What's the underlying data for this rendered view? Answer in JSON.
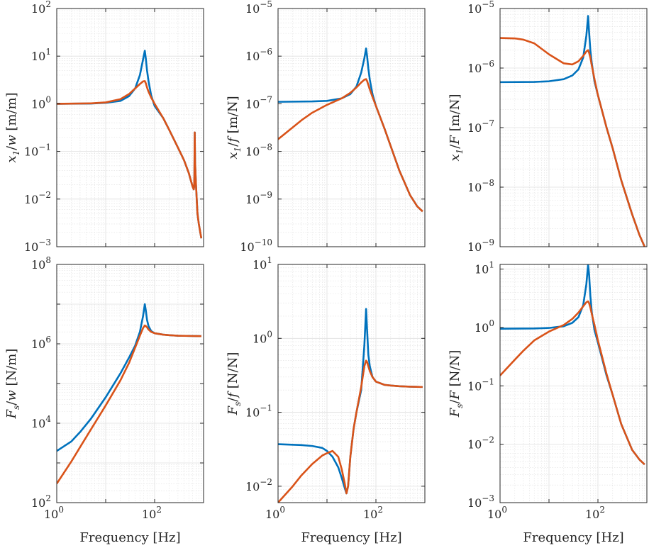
{
  "colors": {
    "series_1": "#0072BD",
    "series_2": "#D95319",
    "grid": "#dfdfdf",
    "axis": "#262626"
  },
  "chart_data": [
    {
      "type": "line",
      "title": "",
      "xscale": "log",
      "yscale": "log",
      "xlim": [
        1,
        1000
      ],
      "ylim": [
        0.001,
        100
      ],
      "xlabel": "",
      "ylabel_html": "x<tspan class=\"sub\">1</tspan>/w [m/m]",
      "ylabel": "x1/w [m/m]",
      "xticks": [],
      "yticks": [
        {
          "v": 0.001,
          "b": "10",
          "e": "−3"
        },
        {
          "v": 0.01,
          "b": "10",
          "e": "−2"
        },
        {
          "v": 0.1,
          "b": "10",
          "e": "−1"
        },
        {
          "v": 1,
          "b": "10",
          "e": "0"
        },
        {
          "v": 10,
          "b": "10",
          "e": "1"
        },
        {
          "v": 100,
          "b": "10",
          "e": "2"
        }
      ],
      "grid": true,
      "series": [
        {
          "x": [
            1,
            5,
            10,
            20,
            30,
            40,
            50,
            58,
            63,
            66,
            70,
            75,
            85,
            100,
            150,
            200,
            300,
            400,
            500,
            560,
            600,
            630,
            640,
            650,
            655,
            660,
            670,
            700,
            750,
            800,
            900
          ],
          "y": [
            1,
            1.01,
            1.05,
            1.15,
            1.45,
            2.1,
            4,
            8.5,
            13,
            9,
            5,
            3,
            1.5,
            0.9,
            0.5,
            0.28,
            0.12,
            0.065,
            0.035,
            0.023,
            0.018,
            0.016,
            0.018,
            0.03,
            0.1,
            0.25,
            0.06,
            0.02,
            0.005,
            0.003,
            0.0015
          ]
        },
        {
          "x": [
            1,
            5,
            10,
            20,
            30,
            40,
            50,
            58,
            63,
            66,
            70,
            75,
            85,
            100,
            150,
            200,
            300,
            400,
            500,
            560,
            600,
            630,
            640,
            650,
            655,
            660,
            670,
            700,
            750,
            800,
            900
          ],
          "y": [
            1,
            1.02,
            1.07,
            1.25,
            1.6,
            2.1,
            2.6,
            2.95,
            3,
            2.7,
            2.2,
            1.8,
            1.35,
            1,
            0.5,
            0.28,
            0.12,
            0.065,
            0.035,
            0.023,
            0.018,
            0.016,
            0.018,
            0.03,
            0.1,
            0.25,
            0.06,
            0.02,
            0.005,
            0.003,
            0.0015
          ]
        }
      ]
    },
    {
      "type": "line",
      "title": "",
      "xscale": "log",
      "yscale": "log",
      "xlim": [
        1,
        1000
      ],
      "ylim": [
        1e-10,
        1e-05
      ],
      "xlabel": "",
      "ylabel": "x1/f [m/N]",
      "xticks": [],
      "yticks": [
        {
          "v": 1e-10,
          "b": "10",
          "e": "−10"
        },
        {
          "v": 1e-09,
          "b": "10",
          "e": "−9"
        },
        {
          "v": 1e-08,
          "b": "10",
          "e": "−8"
        },
        {
          "v": 1e-07,
          "b": "10",
          "e": "−7"
        },
        {
          "v": 1e-06,
          "b": "10",
          "e": "−6"
        },
        {
          "v": 1e-05,
          "b": "10",
          "e": "−5"
        }
      ],
      "grid": true,
      "series": [
        {
          "x": [
            1,
            5,
            10,
            20,
            30,
            40,
            50,
            58,
            63,
            66,
            70,
            75,
            85,
            100,
            150,
            200,
            300,
            500,
            700,
            900
          ],
          "y": [
            1.1e-07,
            1.12e-07,
            1.15e-07,
            1.3e-07,
            1.6e-07,
            2.3e-07,
            4.5e-07,
            9e-07,
            1.45e-06,
            1e-06,
            5.5e-07,
            3.2e-07,
            1.6e-07,
            9e-08,
            3e-08,
            1.3e-08,
            4e-09,
            1.2e-09,
            7e-10,
            5.5e-10
          ]
        },
        {
          "x": [
            1,
            2,
            3,
            5,
            10,
            20,
            30,
            40,
            50,
            58,
            63,
            66,
            70,
            75,
            85,
            100,
            150,
            200,
            300,
            500,
            700,
            900
          ],
          "y": [
            1.8e-08,
            3.2e-08,
            4.5e-08,
            6.5e-08,
            9.5e-08,
            1.3e-07,
            1.7e-07,
            2.2e-07,
            2.8e-07,
            3.2e-07,
            3.3e-07,
            3e-07,
            2.5e-07,
            2e-07,
            1.4e-07,
            9e-08,
            3e-08,
            1.3e-08,
            4e-09,
            1.2e-09,
            7e-10,
            5.5e-10
          ]
        }
      ]
    },
    {
      "type": "line",
      "title": "",
      "xscale": "log",
      "yscale": "log",
      "xlim": [
        1,
        1000
      ],
      "ylim": [
        1e-09,
        1e-05
      ],
      "xlabel": "",
      "ylabel": "x1/F [m/N]",
      "xticks": [],
      "yticks": [
        {
          "v": 1e-09,
          "b": "10",
          "e": "−9"
        },
        {
          "v": 1e-08,
          "b": "10",
          "e": "−8"
        },
        {
          "v": 1e-07,
          "b": "10",
          "e": "−7"
        },
        {
          "v": 1e-06,
          "b": "10",
          "e": "−6"
        },
        {
          "v": 1e-05,
          "b": "10",
          "e": "−5"
        }
      ],
      "grid": true,
      "series": [
        {
          "x": [
            1,
            5,
            10,
            20,
            30,
            40,
            50,
            58,
            63,
            66,
            70,
            75,
            85,
            100,
            150,
            200,
            300,
            500,
            700,
            900
          ],
          "y": [
            5.8e-07,
            5.85e-07,
            6e-07,
            6.5e-07,
            7.5e-07,
            9.5e-07,
            1.5e-06,
            3.5e-06,
            7.5e-06,
            4e-06,
            2e-06,
            1.2e-06,
            6e-07,
            3.5e-07,
            1e-07,
            4.5e-08,
            1.3e-08,
            3.5e-09,
            1.6e-09,
            1e-09
          ]
        },
        {
          "x": [
            1,
            2,
            3,
            5,
            10,
            20,
            30,
            40,
            50,
            58,
            63,
            66,
            70,
            75,
            85,
            100,
            150,
            200,
            300,
            500,
            700,
            900
          ],
          "y": [
            3.2e-06,
            3.15e-06,
            3e-06,
            2.6e-06,
            1.7e-06,
            1.2e-06,
            1.15e-06,
            1.3e-06,
            1.6e-06,
            1.9e-06,
            2e-06,
            1.8e-06,
            1.5e-06,
            1.1e-06,
            6.5e-07,
            3.5e-07,
            1e-07,
            4.5e-08,
            1.3e-08,
            3.5e-09,
            1.6e-09,
            1e-09
          ]
        }
      ]
    },
    {
      "type": "line",
      "title": "",
      "xscale": "log",
      "yscale": "log",
      "xlim": [
        1,
        1000
      ],
      "ylim": [
        100,
        100000000.0
      ],
      "xlabel": "Frequency [Hz]",
      "ylabel": "Fs/w [N/m]",
      "xticks": [
        {
          "v": 1,
          "b": "10",
          "e": "0"
        },
        {
          "v": 100,
          "b": "10",
          "e": "2"
        }
      ],
      "yticks": [
        {
          "v": 100,
          "b": "10",
          "e": "2"
        },
        {
          "v": 10000.0,
          "b": "10",
          "e": "4"
        },
        {
          "v": 1000000.0,
          "b": "10",
          "e": "6"
        },
        {
          "v": 100000000.0,
          "b": "10",
          "e": "8"
        }
      ],
      "grid": true,
      "series": [
        {
          "x": [
            1,
            2,
            3,
            5,
            10,
            20,
            30,
            40,
            50,
            58,
            63,
            66,
            70,
            75,
            85,
            100,
            150,
            200,
            300,
            500,
            700,
            900
          ],
          "y": [
            2000,
            3500,
            6000,
            13000,
            45000,
            180000,
            450000,
            900000,
            2000000.0,
            5000000.0,
            10000000.0,
            7000000.0,
            4000000.0,
            2800000.0,
            2100000.0,
            1850000.0,
            1700000.0,
            1650000.0,
            1600000.0,
            1580000.0,
            1570000.0,
            1560000.0
          ]
        },
        {
          "x": [
            1,
            2,
            3,
            5,
            10,
            20,
            30,
            40,
            50,
            58,
            63,
            66,
            70,
            75,
            85,
            100,
            150,
            200,
            300,
            500,
            700,
            900
          ],
          "y": [
            300,
            1100,
            2500,
            7000,
            28000,
            120000,
            330000,
            800000,
            1600000.0,
            2500000.0,
            2900000.0,
            2800000.0,
            2600000.0,
            2300000.0,
            2000000.0,
            1850000.0,
            1700000.0,
            1650000.0,
            1600000.0,
            1580000.0,
            1570000.0,
            1560000.0
          ]
        }
      ]
    },
    {
      "type": "line",
      "title": "",
      "xscale": "log",
      "yscale": "log",
      "xlim": [
        1,
        1000
      ],
      "ylim": [
        0.006,
        10
      ],
      "xlabel": "Frequency [Hz]",
      "ylabel": "Fs/f [N/N]",
      "xticks": [
        {
          "v": 1,
          "b": "10",
          "e": "0"
        },
        {
          "v": 100,
          "b": "10",
          "e": "2"
        }
      ],
      "yticks": [
        {
          "v": 0.01,
          "b": "10",
          "e": "−2"
        },
        {
          "v": 0.1,
          "b": "10",
          "e": "−1"
        },
        {
          "v": 1,
          "b": "10",
          "e": "0"
        },
        {
          "v": 10,
          "b": "10",
          "e": "1"
        }
      ],
      "grid": true,
      "series": [
        {
          "x": [
            1,
            3,
            5,
            8,
            10,
            13,
            17,
            20,
            23,
            25,
            27,
            30,
            35,
            40,
            50,
            58,
            63,
            66,
            70,
            75,
            85,
            100,
            150,
            200,
            300,
            500,
            700,
            900
          ],
          "y": [
            0.037,
            0.036,
            0.035,
            0.033,
            0.03,
            0.025,
            0.018,
            0.013,
            0.0095,
            0.008,
            0.01,
            0.025,
            0.06,
            0.1,
            0.2,
            0.8,
            2.5,
            1.3,
            0.6,
            0.42,
            0.3,
            0.26,
            0.235,
            0.23,
            0.225,
            0.222,
            0.221,
            0.22
          ]
        },
        {
          "x": [
            1,
            2,
            3,
            5,
            8,
            10,
            13,
            17,
            20,
            23,
            25,
            27,
            30,
            35,
            40,
            50,
            58,
            63,
            66,
            70,
            75,
            85,
            100,
            150,
            200,
            300,
            500,
            700,
            900
          ],
          "y": [
            0.006,
            0.01,
            0.014,
            0.02,
            0.026,
            0.028,
            0.03,
            0.025,
            0.017,
            0.011,
            0.008,
            0.01,
            0.025,
            0.06,
            0.1,
            0.22,
            0.42,
            0.5,
            0.48,
            0.42,
            0.36,
            0.3,
            0.26,
            0.235,
            0.23,
            0.225,
            0.222,
            0.221,
            0.22
          ]
        }
      ]
    },
    {
      "type": "line",
      "title": "",
      "xscale": "log",
      "yscale": "log",
      "xlim": [
        1,
        1000
      ],
      "ylim": [
        0.001,
        12
      ],
      "xlabel": "Frequency [Hz]",
      "ylabel": "Fs/F [N/N]",
      "xticks": [
        {
          "v": 1,
          "b": "10",
          "e": "0"
        },
        {
          "v": 100,
          "b": "10",
          "e": "2"
        }
      ],
      "yticks": [
        {
          "v": 0.001,
          "b": "10",
          "e": "−3"
        },
        {
          "v": 0.01,
          "b": "10",
          "e": "−2"
        },
        {
          "v": 0.1,
          "b": "10",
          "e": "−1"
        },
        {
          "v": 1,
          "b": "10",
          "e": "0"
        },
        {
          "v": 10,
          "b": "10",
          "e": "1"
        }
      ],
      "grid": true,
      "series": [
        {
          "x": [
            1,
            5,
            10,
            20,
            30,
            40,
            50,
            58,
            63,
            66,
            70,
            75,
            85,
            100,
            150,
            200,
            300,
            500,
            700,
            900
          ],
          "y": [
            0.95,
            0.96,
            0.98,
            1.05,
            1.2,
            1.5,
            2.4,
            5.5,
            12,
            8,
            3.5,
            1.8,
            0.9,
            0.55,
            0.15,
            0.07,
            0.022,
            0.008,
            0.0055,
            0.0045
          ]
        },
        {
          "x": [
            1,
            2,
            3,
            5,
            10,
            20,
            30,
            40,
            50,
            58,
            63,
            66,
            70,
            75,
            85,
            100,
            150,
            200,
            300,
            500,
            700,
            900
          ],
          "y": [
            0.15,
            0.28,
            0.4,
            0.6,
            0.85,
            1.1,
            1.4,
            1.8,
            2.3,
            2.7,
            2.8,
            2.6,
            2.2,
            1.7,
            1.1,
            0.6,
            0.16,
            0.07,
            0.022,
            0.008,
            0.0055,
            0.0045
          ]
        }
      ]
    }
  ]
}
